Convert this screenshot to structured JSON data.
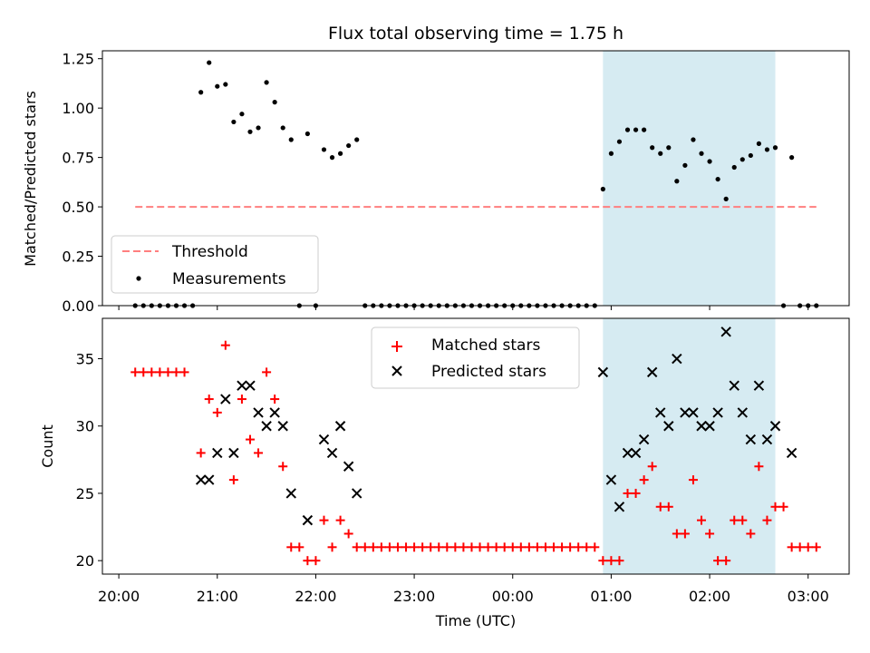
{
  "chart_data": [
    {
      "type": "scatter",
      "title": "Flux total observing time = 1.75 h",
      "ylabel": "Matched/Predicted stars",
      "xlabel": "",
      "ylim": [
        0,
        1.29
      ],
      "yticks": [
        "0.00",
        "0.25",
        "0.50",
        "0.75",
        "1.00",
        "1.25"
      ],
      "yticks_values": [
        0,
        0.25,
        0.5,
        0.75,
        1.0,
        1.25
      ],
      "shaded_interval": [
        "00:55",
        "02:40"
      ],
      "threshold": {
        "name": "Threshold",
        "value": 0.5,
        "x_range": [
          "20:10",
          "03:05"
        ],
        "color": "#ff7f7f"
      },
      "legend": {
        "position": "lower-left",
        "entries": [
          "Threshold",
          "Measurements"
        ]
      },
      "series": [
        {
          "name": "Measurements",
          "color": "#000000",
          "points": [
            [
              "20:10",
              0
            ],
            [
              "20:15",
              0
            ],
            [
              "20:20",
              0
            ],
            [
              "20:25",
              0
            ],
            [
              "20:30",
              0
            ],
            [
              "20:35",
              0
            ],
            [
              "20:40",
              0
            ],
            [
              "20:45",
              0
            ],
            [
              "20:50",
              1.08
            ],
            [
              "20:55",
              1.23
            ],
            [
              "21:00",
              1.11
            ],
            [
              "21:05",
              1.12
            ],
            [
              "21:10",
              0.93
            ],
            [
              "21:15",
              0.97
            ],
            [
              "21:20",
              0.88
            ],
            [
              "21:25",
              0.9
            ],
            [
              "21:30",
              1.13
            ],
            [
              "21:35",
              1.03
            ],
            [
              "21:40",
              0.9
            ],
            [
              "21:45",
              0.84
            ],
            [
              "21:50",
              0
            ],
            [
              "21:55",
              0.87
            ],
            [
              "22:00",
              0
            ],
            [
              "22:05",
              0.79
            ],
            [
              "22:10",
              0.75
            ],
            [
              "22:15",
              0.77
            ],
            [
              "22:20",
              0.81
            ],
            [
              "22:25",
              0.84
            ],
            [
              "22:30",
              0
            ],
            [
              "22:35",
              0
            ],
            [
              "22:40",
              0
            ],
            [
              "22:45",
              0
            ],
            [
              "22:50",
              0
            ],
            [
              "22:55",
              0
            ],
            [
              "23:00",
              0
            ],
            [
              "23:05",
              0
            ],
            [
              "23:10",
              0
            ],
            [
              "23:15",
              0
            ],
            [
              "23:20",
              0
            ],
            [
              "23:25",
              0
            ],
            [
              "23:30",
              0
            ],
            [
              "23:35",
              0
            ],
            [
              "23:40",
              0
            ],
            [
              "23:45",
              0
            ],
            [
              "23:50",
              0
            ],
            [
              "23:55",
              0
            ],
            [
              "00:00",
              0
            ],
            [
              "00:05",
              0
            ],
            [
              "00:10",
              0
            ],
            [
              "00:15",
              0
            ],
            [
              "00:20",
              0
            ],
            [
              "00:25",
              0
            ],
            [
              "00:30",
              0
            ],
            [
              "00:35",
              0
            ],
            [
              "00:40",
              0
            ],
            [
              "00:45",
              0
            ],
            [
              "00:50",
              0
            ],
            [
              "00:55",
              0.59
            ],
            [
              "01:00",
              0.77
            ],
            [
              "01:05",
              0.83
            ],
            [
              "01:10",
              0.89
            ],
            [
              "01:15",
              0.89
            ],
            [
              "01:20",
              0.89
            ],
            [
              "01:25",
              0.8
            ],
            [
              "01:30",
              0.77
            ],
            [
              "01:35",
              0.8
            ],
            [
              "01:40",
              0.63
            ],
            [
              "01:45",
              0.71
            ],
            [
              "01:50",
              0.84
            ],
            [
              "01:55",
              0.77
            ],
            [
              "02:00",
              0.73
            ],
            [
              "02:05",
              0.64
            ],
            [
              "02:10",
              0.54
            ],
            [
              "02:15",
              0.7
            ],
            [
              "02:20",
              0.74
            ],
            [
              "02:25",
              0.76
            ],
            [
              "02:30",
              0.82
            ],
            [
              "02:35",
              0.79
            ],
            [
              "02:40",
              0.8
            ],
            [
              "02:45",
              0
            ],
            [
              "02:50",
              0.75
            ],
            [
              "02:55",
              0
            ],
            [
              "03:00",
              0
            ],
            [
              "03:05",
              0
            ]
          ]
        }
      ]
    },
    {
      "type": "scatter",
      "title": "",
      "xlabel": "Time (UTC)",
      "ylabel": "Count",
      "ylim": [
        19.0,
        38.0
      ],
      "yticks": [
        "20",
        "25",
        "30",
        "35"
      ],
      "yticks_values": [
        20,
        25,
        30,
        35
      ],
      "xticks": [
        "20:00",
        "21:00",
        "22:00",
        "23:00",
        "00:00",
        "01:00",
        "02:00",
        "03:00"
      ],
      "xrange": [
        "19:50",
        "03:25"
      ],
      "shaded_interval": [
        "00:55",
        "02:40"
      ],
      "legend": {
        "position": "top-center",
        "entries": [
          "Matched stars",
          "Predicted stars"
        ]
      },
      "series": [
        {
          "name": "Matched stars",
          "marker": "+",
          "color": "#ff0000",
          "points": [
            [
              "20:10",
              34
            ],
            [
              "20:15",
              34
            ],
            [
              "20:20",
              34
            ],
            [
              "20:25",
              34
            ],
            [
              "20:30",
              34
            ],
            [
              "20:35",
              34
            ],
            [
              "20:40",
              34
            ],
            [
              "20:50",
              28
            ],
            [
              "20:55",
              32
            ],
            [
              "21:00",
              31
            ],
            [
              "21:05",
              36
            ],
            [
              "21:10",
              26
            ],
            [
              "21:15",
              32
            ],
            [
              "21:20",
              29
            ],
            [
              "21:25",
              28
            ],
            [
              "21:30",
              34
            ],
            [
              "21:35",
              32
            ],
            [
              "21:40",
              27
            ],
            [
              "21:45",
              21
            ],
            [
              "21:50",
              21
            ],
            [
              "21:55",
              20
            ],
            [
              "22:00",
              20
            ],
            [
              "22:05",
              23
            ],
            [
              "22:10",
              21
            ],
            [
              "22:15",
              23
            ],
            [
              "22:20",
              22
            ],
            [
              "22:25",
              21
            ],
            [
              "22:30",
              21
            ],
            [
              "22:35",
              21
            ],
            [
              "22:40",
              21
            ],
            [
              "22:45",
              21
            ],
            [
              "22:50",
              21
            ],
            [
              "22:55",
              21
            ],
            [
              "23:00",
              21
            ],
            [
              "23:05",
              21
            ],
            [
              "23:10",
              21
            ],
            [
              "23:15",
              21
            ],
            [
              "23:20",
              21
            ],
            [
              "23:25",
              21
            ],
            [
              "23:30",
              21
            ],
            [
              "23:35",
              21
            ],
            [
              "23:40",
              21
            ],
            [
              "23:45",
              21
            ],
            [
              "23:50",
              21
            ],
            [
              "23:55",
              21
            ],
            [
              "00:00",
              21
            ],
            [
              "00:05",
              21
            ],
            [
              "00:10",
              21
            ],
            [
              "00:15",
              21
            ],
            [
              "00:20",
              21
            ],
            [
              "00:25",
              21
            ],
            [
              "00:30",
              21
            ],
            [
              "00:35",
              21
            ],
            [
              "00:40",
              21
            ],
            [
              "00:45",
              21
            ],
            [
              "00:50",
              21
            ],
            [
              "00:55",
              20
            ],
            [
              "01:00",
              20
            ],
            [
              "01:05",
              20
            ],
            [
              "01:10",
              25
            ],
            [
              "01:15",
              25
            ],
            [
              "01:20",
              26
            ],
            [
              "01:25",
              27
            ],
            [
              "01:30",
              24
            ],
            [
              "01:35",
              24
            ],
            [
              "01:40",
              22
            ],
            [
              "01:45",
              22
            ],
            [
              "01:50",
              26
            ],
            [
              "01:55",
              23
            ],
            [
              "02:00",
              22
            ],
            [
              "02:05",
              20
            ],
            [
              "02:10",
              20
            ],
            [
              "02:15",
              23
            ],
            [
              "02:20",
              23
            ],
            [
              "02:25",
              22
            ],
            [
              "02:30",
              27
            ],
            [
              "02:35",
              23
            ],
            [
              "02:40",
              24
            ],
            [
              "02:45",
              24
            ],
            [
              "02:50",
              21
            ],
            [
              "02:55",
              21
            ],
            [
              "03:00",
              21
            ],
            [
              "03:05",
              21
            ]
          ]
        },
        {
          "name": "Predicted stars",
          "marker": "x",
          "color": "#000000",
          "points": [
            [
              "20:50",
              26
            ],
            [
              "20:55",
              26
            ],
            [
              "21:00",
              28
            ],
            [
              "21:05",
              32
            ],
            [
              "21:10",
              28
            ],
            [
              "21:15",
              33
            ],
            [
              "21:20",
              33
            ],
            [
              "21:25",
              31
            ],
            [
              "21:30",
              30
            ],
            [
              "21:35",
              31
            ],
            [
              "21:40",
              30
            ],
            [
              "21:45",
              25
            ],
            [
              "21:55",
              23
            ],
            [
              "22:05",
              29
            ],
            [
              "22:10",
              28
            ],
            [
              "22:15",
              30
            ],
            [
              "22:20",
              27
            ],
            [
              "22:25",
              25
            ],
            [
              "00:55",
              34
            ],
            [
              "01:00",
              26
            ],
            [
              "01:05",
              24
            ],
            [
              "01:10",
              28
            ],
            [
              "01:15",
              28
            ],
            [
              "01:20",
              29
            ],
            [
              "01:25",
              34
            ],
            [
              "01:30",
              31
            ],
            [
              "01:35",
              30
            ],
            [
              "01:40",
              35
            ],
            [
              "01:45",
              31
            ],
            [
              "01:50",
              31
            ],
            [
              "01:55",
              30
            ],
            [
              "02:00",
              30
            ],
            [
              "02:05",
              31
            ],
            [
              "02:10",
              37
            ],
            [
              "02:15",
              33
            ],
            [
              "02:20",
              31
            ],
            [
              "02:25",
              29
            ],
            [
              "02:30",
              33
            ],
            [
              "02:35",
              29
            ],
            [
              "02:40",
              30
            ],
            [
              "02:50",
              28
            ]
          ]
        }
      ]
    }
  ]
}
